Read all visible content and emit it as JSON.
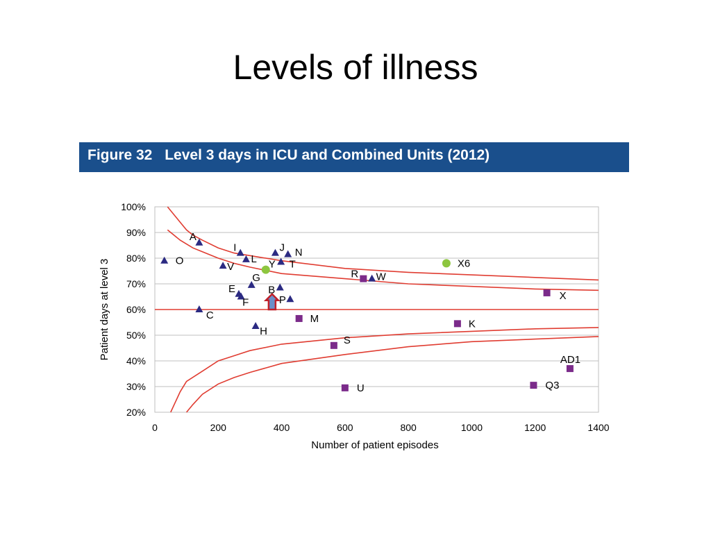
{
  "slide": {
    "title": "Levels of illness"
  },
  "figure": {
    "number": "Figure 32",
    "caption": "Level 3 days in ICU and Combined Units (2012)"
  },
  "colors": {
    "banner": "#1a4f8c",
    "triangle": "#2b2a82",
    "square": "#7b2b8a",
    "circle": "#8dc63f",
    "limit_line": "#e03c31",
    "arrow": "#c0202a",
    "arrow_fill": "#6b8fc9"
  },
  "chart_data": {
    "type": "scatter",
    "xlabel": "Number of patient episodes",
    "ylabel": "Patient days at level 3",
    "xlim": [
      0,
      1400
    ],
    "ylim": [
      20,
      100
    ],
    "xticks": [
      {
        "v": 0,
        "label": "0"
      },
      {
        "v": 200,
        "label": "200"
      },
      {
        "v": 400,
        "label": "400"
      },
      {
        "v": 600,
        "label": "600"
      },
      {
        "v": 800,
        "label": "800"
      },
      {
        "v": 1000,
        "label": "1000"
      },
      {
        "v": 1200,
        "label": "1200"
      },
      {
        "v": 1400,
        "label": "1400"
      }
    ],
    "yticks": [
      {
        "v": 20,
        "label": "20%"
      },
      {
        "v": 30,
        "label": "30%"
      },
      {
        "v": 40,
        "label": "40%"
      },
      {
        "v": 50,
        "label": "50%"
      },
      {
        "v": 60,
        "label": "60%"
      },
      {
        "v": 70,
        "label": "70%"
      },
      {
        "v": 80,
        "label": "80%"
      },
      {
        "v": 90,
        "label": "90%"
      },
      {
        "v": 100,
        "label": "100%"
      }
    ],
    "mean": 60,
    "limits": {
      "upper_outer": [
        [
          40,
          100
        ],
        [
          60,
          97
        ],
        [
          80,
          94
        ],
        [
          100,
          91
        ],
        [
          120,
          89
        ],
        [
          150,
          87
        ],
        [
          200,
          84
        ],
        [
          250,
          82
        ],
        [
          300,
          81
        ],
        [
          400,
          79
        ],
        [
          600,
          76
        ],
        [
          800,
          74.5
        ],
        [
          1000,
          73.5
        ],
        [
          1200,
          72.5
        ],
        [
          1400,
          71.5
        ]
      ],
      "upper_inner": [
        [
          40,
          91
        ],
        [
          80,
          87
        ],
        [
          120,
          84
        ],
        [
          150,
          82.5
        ],
        [
          200,
          80
        ],
        [
          250,
          78
        ],
        [
          300,
          76.5
        ],
        [
          400,
          74
        ],
        [
          600,
          72
        ],
        [
          800,
          70
        ],
        [
          1000,
          69
        ],
        [
          1200,
          68
        ],
        [
          1400,
          67.5
        ]
      ],
      "lower_inner": [
        [
          50,
          20
        ],
        [
          80,
          28
        ],
        [
          100,
          32
        ],
        [
          150,
          36
        ],
        [
          200,
          40
        ],
        [
          250,
          42
        ],
        [
          300,
          44
        ],
        [
          400,
          46.5
        ],
        [
          600,
          49
        ],
        [
          800,
          50.5
        ],
        [
          1000,
          51.5
        ],
        [
          1200,
          52.5
        ],
        [
          1400,
          53
        ]
      ],
      "lower_outer": [
        [
          100,
          20
        ],
        [
          120,
          23
        ],
        [
          150,
          27
        ],
        [
          200,
          31
        ],
        [
          250,
          33.5
        ],
        [
          300,
          35.5
        ],
        [
          400,
          39
        ],
        [
          600,
          42.5
        ],
        [
          800,
          45.5
        ],
        [
          1000,
          47.5
        ],
        [
          1200,
          48.5
        ],
        [
          1400,
          49.5
        ]
      ]
    },
    "points": [
      {
        "label": "A",
        "shape": "triangle",
        "x": 140,
        "y": 86,
        "lx": -14,
        "ly": -4
      },
      {
        "label": "O",
        "shape": "triangle",
        "x": 30,
        "y": 79,
        "lx": 16,
        "ly": 5
      },
      {
        "label": "I",
        "shape": "triangle",
        "x": 270,
        "y": 82,
        "lx": -10,
        "ly": -3
      },
      {
        "label": "J",
        "shape": "triangle",
        "x": 380,
        "y": 82,
        "lx": 6,
        "ly": -3
      },
      {
        "label": "N",
        "shape": "triangle",
        "x": 420,
        "y": 81.5,
        "lx": 10,
        "ly": 2
      },
      {
        "label": "L",
        "shape": "triangle",
        "x": 288,
        "y": 79.5,
        "lx": 7,
        "ly": 4
      },
      {
        "label": "V",
        "shape": "triangle",
        "x": 215,
        "y": 77,
        "lx": 6,
        "ly": 6
      },
      {
        "label": "T",
        "shape": "triangle",
        "x": 398,
        "y": 78.5,
        "lx": 12,
        "ly": 8
      },
      {
        "label": "G",
        "shape": "triangle",
        "x": 305,
        "y": 69.5,
        "lx": 1,
        "ly": -6
      },
      {
        "label": "E",
        "shape": "triangle",
        "x": 265,
        "y": 66,
        "lx": -15,
        "ly": -3
      },
      {
        "label": "F",
        "shape": "triangle",
        "x": 272,
        "y": 65,
        "lx": 2,
        "ly": 13
      },
      {
        "label": "B",
        "shape": "triangle",
        "x": 395,
        "y": 68.5,
        "lx": -17,
        "ly": 8
      },
      {
        "label": "P",
        "shape": "triangle",
        "x": 427,
        "y": 64,
        "lx": -16,
        "ly": 6
      },
      {
        "label": "C",
        "shape": "triangle",
        "x": 140,
        "y": 60,
        "lx": 10,
        "ly": 13
      },
      {
        "label": "H",
        "shape": "triangle",
        "x": 318,
        "y": 53.5,
        "lx": 6,
        "ly": 12
      },
      {
        "label": "Y",
        "shape": "circle",
        "x": 350,
        "y": 75.5,
        "lx": 4,
        "ly": -3
      },
      {
        "label": "X6",
        "shape": "circle",
        "x": 920,
        "y": 78,
        "lx": 16,
        "ly": 5
      },
      {
        "label": "R",
        "shape": "square",
        "x": 658,
        "y": 72,
        "lx": -18,
        "ly": -2
      },
      {
        "label": "W",
        "shape": "triangle",
        "x": 685,
        "y": 72,
        "lx": 6,
        "ly": 2
      },
      {
        "label": "M",
        "shape": "square",
        "x": 455,
        "y": 56.5,
        "lx": 16,
        "ly": 5
      },
      {
        "label": "S",
        "shape": "square",
        "x": 565,
        "y": 46,
        "lx": 14,
        "ly": -3
      },
      {
        "label": "U",
        "shape": "square",
        "x": 600,
        "y": 29.5,
        "lx": 17,
        "ly": 5
      },
      {
        "label": "K",
        "shape": "square",
        "x": 955,
        "y": 54.5,
        "lx": 16,
        "ly": 5
      },
      {
        "label": "X",
        "shape": "square",
        "x": 1237,
        "y": 66.5,
        "lx": 18,
        "ly": 9
      },
      {
        "label": "AD1",
        "shape": "square",
        "x": 1310,
        "y": 37,
        "lx": -14,
        "ly": -8
      },
      {
        "label": "Q3",
        "shape": "square",
        "x": 1195,
        "y": 30.5,
        "lx": 17,
        "ly": 5
      }
    ],
    "highlight": {
      "x": 370,
      "from": 60,
      "to": 66
    }
  }
}
